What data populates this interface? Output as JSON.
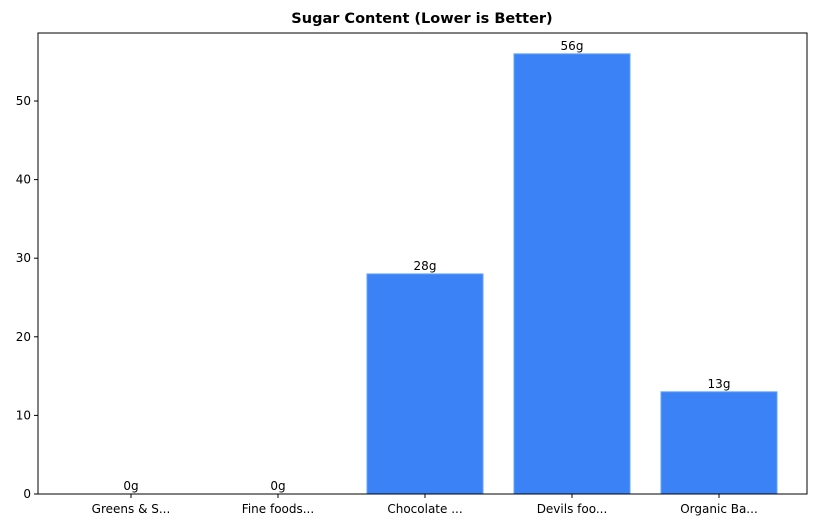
{
  "chart_data": {
    "type": "bar",
    "title": "Sugar Content (Lower is Better)",
    "xlabel": "",
    "ylabel": "",
    "categories": [
      "Greens & S...",
      "Fine foods...",
      "Chocolate ...",
      "Devils foo...",
      "Organic Ba..."
    ],
    "values": [
      0,
      0,
      28,
      56,
      13
    ],
    "value_labels": [
      "0g",
      "0g",
      "28g",
      "56g",
      "13g"
    ],
    "ylim": [
      0,
      58.8
    ],
    "yticks": [
      0,
      10,
      20,
      30,
      40,
      50
    ],
    "grid": false,
    "legend": null,
    "bar_color": "#3b82f6",
    "bar_edge_color": "#60a5fa"
  }
}
